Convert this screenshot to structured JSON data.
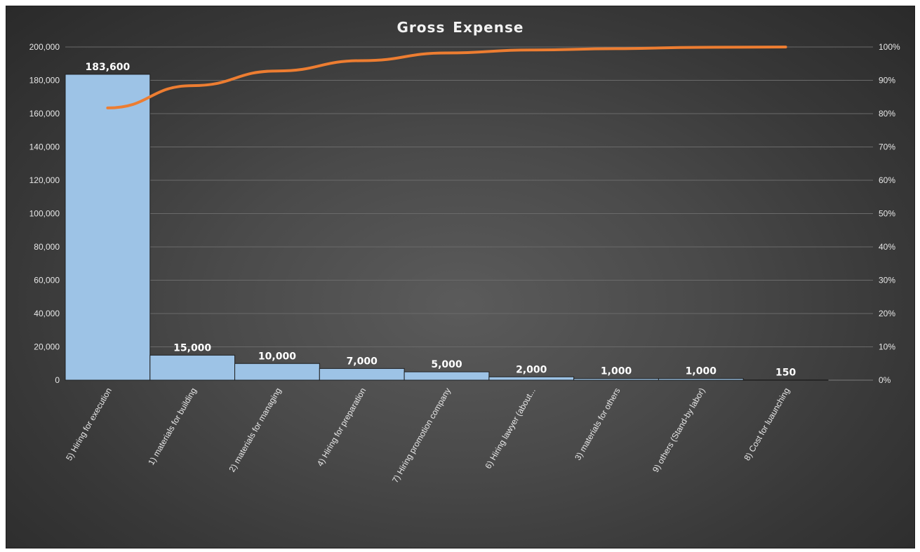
{
  "chart_data": {
    "type": "bar",
    "title": "Gross Expense",
    "xlabel": "",
    "ylabel": "",
    "categories": [
      "5) Hiring for execution",
      "1) materials for building",
      "2) materials for managing",
      "4) Hiring for preparation",
      "7) Hiring promotion company",
      "6) Hiring lawyer (about...",
      "3) materials for others",
      "9) others (Stand-by labor)",
      "8) Cost for luaunching"
    ],
    "series": [
      {
        "type": "bar",
        "values": [
          183600,
          15000,
          10000,
          7000,
          5000,
          2000,
          1000,
          1000,
          150
        ],
        "data_labels": [
          "183,600",
          "15,000",
          "10,000",
          "7,000",
          "5,000",
          "2,000",
          "1,000",
          "1,000",
          "150"
        ],
        "color": "#9dc3e6"
      },
      {
        "type": "line",
        "axis": "right",
        "values": [
          81.7,
          88.4,
          92.8,
          95.9,
          98.2,
          99.1,
          99.5,
          99.9,
          100
        ],
        "color": "#ed7d31"
      }
    ],
    "ylim": [
      0,
      200000
    ],
    "y_ticks": [
      "0",
      "20,000",
      "40,000",
      "60,000",
      "80,000",
      "100,000",
      "120,000",
      "140,000",
      "160,000",
      "180,000",
      "200,000"
    ],
    "y2lim": [
      0,
      100
    ],
    "y2_ticks": [
      "0%",
      "10%",
      "20%",
      "30%",
      "40%",
      "50%",
      "60%",
      "70%",
      "80%",
      "90%",
      "100%"
    ],
    "grid": true,
    "legend": "none",
    "colors": {
      "bar_fill": "#9dc3e6",
      "bar_edge": "#1f1f1f",
      "line": "#ed7d31",
      "gridline": "#6a6a6a",
      "text": "#e8e8e8"
    }
  }
}
